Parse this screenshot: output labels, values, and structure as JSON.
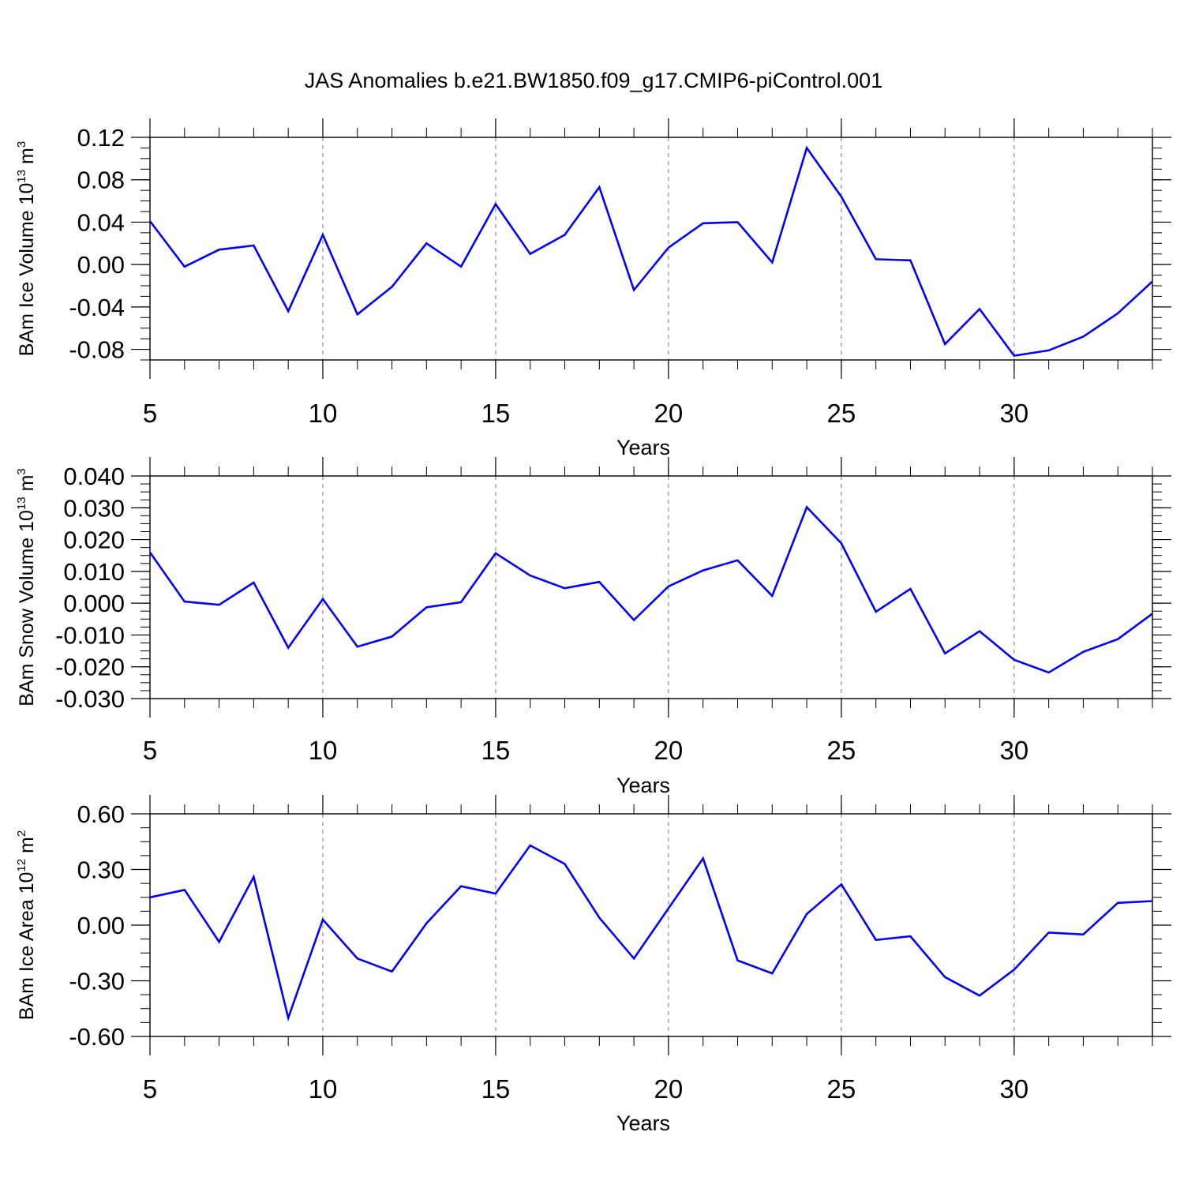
{
  "title": "JAS Anomalies b.e21.BW1850.f09_g17.CMIP6-piControl.001",
  "colors": {
    "line": "#0000ff",
    "axis": "#000000",
    "grid": "#777777"
  },
  "chart_data": [
    {
      "type": "line",
      "title": "",
      "xlabel": "Years",
      "ylabel_parts": [
        "BAm Ice Volume 10",
        "13",
        " m",
        "3"
      ],
      "xlim": [
        5,
        34
      ],
      "ylim": [
        -0.09,
        0.12
      ],
      "yticks": [
        "-0.08",
        "-0.04",
        "0.00",
        "0.04",
        "0.08",
        "0.12"
      ],
      "xticks": [
        "5",
        "10",
        "15",
        "20",
        "25",
        "30"
      ],
      "x": [
        5,
        6,
        7,
        8,
        9,
        10,
        11,
        12,
        13,
        14,
        15,
        16,
        17,
        18,
        19,
        20,
        21,
        22,
        23,
        24,
        25,
        26,
        27,
        28,
        29,
        30,
        31,
        32,
        33,
        34
      ],
      "values": [
        0.041,
        -0.002,
        0.014,
        0.018,
        -0.044,
        0.028,
        -0.047,
        -0.021,
        0.02,
        -0.002,
        0.057,
        0.01,
        0.028,
        0.073,
        -0.024,
        0.016,
        0.039,
        0.04,
        0.002,
        0.11,
        0.064,
        0.005,
        0.004,
        -0.075,
        -0.042,
        -0.086,
        -0.081,
        -0.068,
        -0.046,
        -0.016
      ]
    },
    {
      "type": "line",
      "title": "",
      "xlabel": "Years",
      "ylabel_parts": [
        "BAm Snow Volume 10",
        "13",
        " m",
        "3"
      ],
      "xlim": [
        5,
        34
      ],
      "ylim": [
        -0.03,
        0.04
      ],
      "yticks": [
        "-0.030",
        "-0.020",
        "-0.010",
        "0.000",
        "0.010",
        "0.020",
        "0.030",
        "0.040"
      ],
      "xticks": [
        "5",
        "10",
        "15",
        "20",
        "25",
        "30"
      ],
      "x": [
        5,
        6,
        7,
        8,
        9,
        10,
        11,
        12,
        13,
        14,
        15,
        16,
        17,
        18,
        19,
        20,
        21,
        22,
        23,
        24,
        25,
        26,
        27,
        28,
        29,
        30,
        31,
        32,
        33,
        34
      ],
      "values": [
        0.016,
        0.0005,
        -0.0005,
        0.0065,
        -0.014,
        0.0013,
        -0.0137,
        -0.0105,
        -0.0013,
        0.0003,
        0.0157,
        0.0087,
        0.0047,
        0.0067,
        -0.0053,
        0.0053,
        0.0103,
        0.0135,
        0.0023,
        0.0302,
        0.0188,
        -0.0027,
        0.0045,
        -0.0158,
        -0.0088,
        -0.0178,
        -0.0218,
        -0.0153,
        -0.0113,
        -0.0033
      ]
    },
    {
      "type": "line",
      "title": "",
      "xlabel": "Years",
      "ylabel_parts": [
        "BAm Ice Area 10",
        "12",
        " m",
        "2"
      ],
      "xlim": [
        5,
        34
      ],
      "ylim": [
        -0.6,
        0.6
      ],
      "yticks": [
        "-0.60",
        "-0.30",
        "0.00",
        "0.30",
        "0.60"
      ],
      "xticks": [
        "5",
        "10",
        "15",
        "20",
        "25",
        "30"
      ],
      "x": [
        5,
        6,
        7,
        8,
        9,
        10,
        11,
        12,
        13,
        14,
        15,
        16,
        17,
        18,
        19,
        20,
        21,
        22,
        23,
        24,
        25,
        26,
        27,
        28,
        29,
        30,
        31,
        32,
        33,
        34
      ],
      "values": [
        0.15,
        0.19,
        -0.09,
        0.26,
        -0.5,
        0.03,
        -0.18,
        -0.25,
        0.01,
        0.21,
        0.17,
        0.43,
        0.33,
        0.04,
        -0.18,
        0.09,
        0.36,
        -0.19,
        -0.26,
        0.06,
        0.22,
        -0.08,
        -0.06,
        -0.28,
        -0.38,
        -0.24,
        -0.04,
        -0.05,
        0.12,
        0.13
      ]
    }
  ]
}
